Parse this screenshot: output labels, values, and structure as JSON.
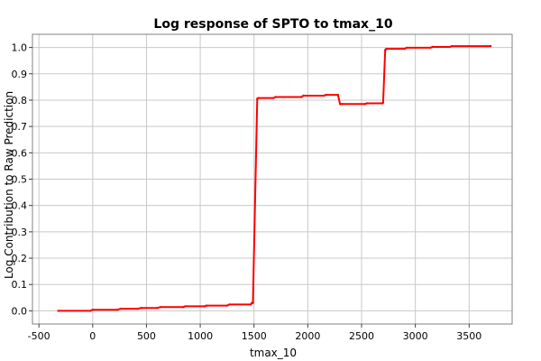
{
  "chart_data": {
    "type": "line",
    "title": "Log response of SPTO to tmax_10",
    "xlabel": "tmax_10",
    "ylabel": "Log Contribution to Raw Prediction",
    "xlim": [
      -560,
      3900
    ],
    "ylim": [
      -0.05,
      1.05
    ],
    "x_ticks": [
      -500,
      0,
      500,
      1000,
      1500,
      2000,
      2500,
      3000,
      3500
    ],
    "y_ticks": [
      0.0,
      0.1,
      0.2,
      0.3,
      0.4,
      0.5,
      0.6,
      0.7,
      0.8,
      0.9,
      1.0
    ],
    "x_tick_labels": [
      "-500",
      "0",
      "500",
      "1000",
      "1500",
      "2000",
      "2500",
      "3000",
      "3500"
    ],
    "y_tick_labels": [
      "0.0",
      "0.1",
      "0.2",
      "0.3",
      "0.4",
      "0.5",
      "0.6",
      "0.7",
      "0.8",
      "0.9",
      "1.0"
    ],
    "grid": true,
    "line_color": "#ff0000",
    "series": [
      {
        "x": [
          -320,
          -20,
          0,
          230,
          260,
          420,
          450,
          600,
          630,
          840,
          860,
          1040,
          1060,
          1250,
          1270,
          1470,
          1480,
          1490,
          1530,
          1540,
          1680,
          1700,
          1940,
          1960,
          2150,
          2170,
          2280,
          2300,
          2320,
          2530,
          2550,
          2690,
          2700,
          2720,
          2730,
          2900,
          2920,
          3140,
          3160,
          3320,
          3340,
          3700
        ],
        "y": [
          0.0,
          0.0,
          0.004,
          0.004,
          0.008,
          0.008,
          0.011,
          0.011,
          0.014,
          0.014,
          0.017,
          0.017,
          0.02,
          0.02,
          0.024,
          0.024,
          0.03,
          0.03,
          0.805,
          0.808,
          0.808,
          0.812,
          0.812,
          0.817,
          0.817,
          0.82,
          0.82,
          0.785,
          0.785,
          0.785,
          0.788,
          0.788,
          0.79,
          0.99,
          0.995,
          0.995,
          0.999,
          0.999,
          1.002,
          1.002,
          1.005,
          1.005
        ]
      }
    ]
  }
}
